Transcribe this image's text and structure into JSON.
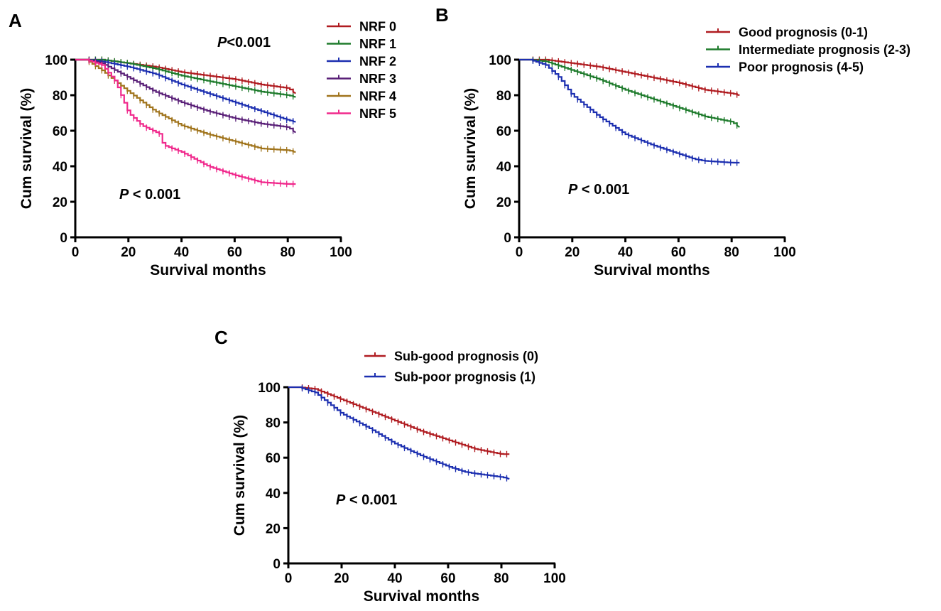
{
  "colors": {
    "dark_red": "#b01c21",
    "green": "#1e7b2c",
    "blue": "#1c2fb0",
    "purple": "#5a2078",
    "brown": "#a0741c",
    "magenta": "#f0288c",
    "axis": "#000000"
  },
  "chart_data": [
    {
      "type": "line",
      "subtype": "kaplan-meier",
      "panel": "A",
      "xlabel": "Survival months",
      "ylabel": "Cum survival (%)",
      "xlim": [
        0,
        100
      ],
      "ylim": [
        0,
        100
      ],
      "xticks": [
        "0",
        "20",
        "40",
        "60",
        "80",
        "100"
      ],
      "yticks": [
        "0",
        "20",
        "40",
        "60",
        "80",
        "100"
      ],
      "grid": false,
      "legend_position": "top-right, outside plot",
      "annotations": [
        {
          "prefix": "P",
          "text": "<0.001",
          "position": "top-right"
        },
        {
          "prefix": "P",
          "text": " < 0.001",
          "position": "bottom-left"
        }
      ],
      "series": [
        {
          "name": "NRF 0",
          "color": "#b01c21",
          "x": [
            4,
            10,
            20,
            30,
            40,
            50,
            60,
            70,
            80,
            83
          ],
          "y": [
            100,
            100,
            98,
            96,
            93,
            91,
            89,
            86,
            84,
            81
          ]
        },
        {
          "name": "NRF 1",
          "color": "#1e7b2c",
          "x": [
            4,
            10,
            20,
            30,
            40,
            50,
            60,
            70,
            80,
            83
          ],
          "y": [
            100,
            100,
            98,
            95,
            91,
            88,
            85,
            82,
            80,
            79
          ]
        },
        {
          "name": "NRF 2",
          "color": "#1c2fb0",
          "x": [
            4,
            10,
            20,
            30,
            40,
            50,
            60,
            70,
            80,
            83
          ],
          "y": [
            100,
            99,
            96,
            92,
            86,
            81,
            76,
            71,
            66,
            65
          ]
        },
        {
          "name": "NRF 3",
          "color": "#5a2078",
          "x": [
            4,
            10,
            20,
            30,
            40,
            50,
            60,
            70,
            80,
            83
          ],
          "y": [
            100,
            98,
            90,
            82,
            76,
            71,
            67,
            64,
            62,
            59
          ]
        },
        {
          "name": "NRF 4",
          "color": "#a0741c",
          "x": [
            4,
            10,
            20,
            30,
            40,
            50,
            60,
            70,
            80,
            83
          ],
          "y": [
            100,
            94,
            82,
            71,
            63,
            58,
            54,
            50,
            49,
            48
          ]
        },
        {
          "name": "NRF 5",
          "color": "#f0288c",
          "x": [
            4,
            10,
            15,
            20,
            25,
            32,
            33,
            40,
            50,
            60,
            70,
            80,
            83
          ],
          "y": [
            100,
            97,
            88,
            70,
            63,
            58,
            52,
            48,
            40,
            35,
            31,
            30,
            30
          ]
        }
      ]
    },
    {
      "type": "line",
      "subtype": "kaplan-meier",
      "panel": "B",
      "xlabel": "Survival months",
      "ylabel": "Cum survival (%)",
      "xlim": [
        0,
        100
      ],
      "ylim": [
        0,
        100
      ],
      "xticks": [
        "0",
        "20",
        "40",
        "60",
        "80",
        "100"
      ],
      "yticks": [
        "0",
        "20",
        "40",
        "60",
        "80",
        "100"
      ],
      "grid": false,
      "legend_position": "top-right, outside plot",
      "annotations": [
        {
          "prefix": "P",
          "text": " < 0.001",
          "position": "bottom-left"
        }
      ],
      "series": [
        {
          "name": "Good prognosis (0-1)",
          "color": "#b01c21",
          "x": [
            4,
            10,
            20,
            30,
            40,
            50,
            60,
            70,
            80,
            83
          ],
          "y": [
            100,
            100,
            98,
            96,
            93,
            90,
            87,
            83,
            81,
            80
          ]
        },
        {
          "name": "Intermediate prognosis (2-3)",
          "color": "#1e7b2c",
          "x": [
            4,
            10,
            20,
            30,
            40,
            50,
            60,
            70,
            80,
            83
          ],
          "y": [
            100,
            99,
            94,
            89,
            83,
            78,
            73,
            68,
            65,
            62
          ]
        },
        {
          "name": "Poor prognosis (4-5)",
          "color": "#1c2fb0",
          "x": [
            4,
            10,
            15,
            20,
            30,
            40,
            50,
            60,
            66,
            70,
            80,
            83
          ],
          "y": [
            100,
            97,
            90,
            80,
            68,
            58,
            52,
            47,
            44,
            43,
            42,
            42
          ]
        }
      ]
    },
    {
      "type": "line",
      "subtype": "kaplan-meier",
      "panel": "C",
      "xlabel": "Survival months",
      "ylabel": "Cum survival (%)",
      "xlim": [
        0,
        100
      ],
      "ylim": [
        0,
        100
      ],
      "xticks": [
        "0",
        "20",
        "40",
        "60",
        "80",
        "100"
      ],
      "yticks": [
        "0",
        "20",
        "40",
        "60",
        "80",
        "100"
      ],
      "grid": false,
      "legend_position": "top, outside plot",
      "annotations": [
        {
          "prefix": "P",
          "text": " < 0.001",
          "position": "bottom-left"
        }
      ],
      "series": [
        {
          "name": "Sub-good prognosis (0)",
          "color": "#b01c21",
          "x": [
            4,
            10,
            20,
            30,
            40,
            50,
            60,
            70,
            80,
            83
          ],
          "y": [
            100,
            99,
            93,
            87,
            81,
            75,
            70,
            65,
            62,
            62
          ]
        },
        {
          "name": "Sub-poor prognosis (1)",
          "color": "#1c2fb0",
          "x": [
            4,
            10,
            20,
            30,
            40,
            50,
            60,
            66,
            70,
            80,
            83
          ],
          "y": [
            100,
            97,
            85,
            77,
            68,
            61,
            55,
            52,
            51,
            49,
            48
          ]
        }
      ]
    }
  ]
}
